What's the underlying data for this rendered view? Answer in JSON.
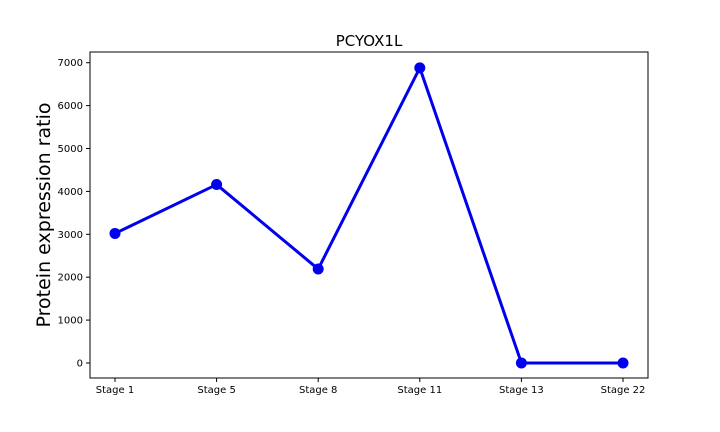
{
  "chart_data": {
    "type": "line",
    "title": "PCYOX1L",
    "xlabel": "",
    "ylabel": "Protein expression ratio",
    "categories": [
      "Stage 1",
      "Stage 5",
      "Stage 8",
      "Stage 11",
      "Stage 13",
      "Stage 22"
    ],
    "series": [
      {
        "values": [
          3020,
          4160,
          2190,
          6880,
          0,
          0
        ],
        "color": "#0000ee"
      }
    ],
    "ylim": [
      -350,
      7250
    ],
    "yticks": [
      0,
      1000,
      2000,
      3000,
      4000,
      5000,
      6000,
      7000
    ],
    "ytick_labels": [
      "0",
      "1000",
      "2000",
      "3000",
      "4000",
      "5000",
      "6000",
      "7000"
    ],
    "grid": false,
    "legend": "none"
  }
}
